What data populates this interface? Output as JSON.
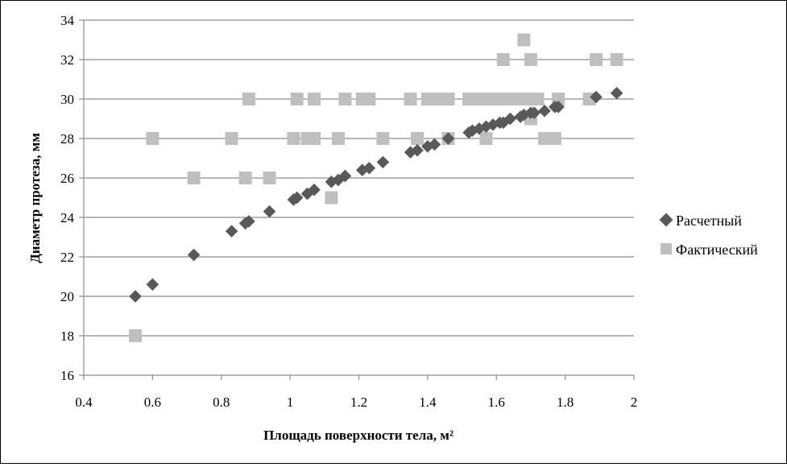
{
  "chart_data": {
    "type": "scatter",
    "xlabel": "Площадь поверхности тела, м²",
    "ylabel": "Диаметр протеза, мм",
    "xlim": [
      0.4,
      2
    ],
    "ylim": [
      16,
      34
    ],
    "x_ticks": [
      "0.4",
      "0.6",
      "0.8",
      "1",
      "1.2",
      "1.4",
      "1.6",
      "1.8",
      "2"
    ],
    "y_ticks": [
      "16",
      "18",
      "20",
      "22",
      "24",
      "26",
      "28",
      "30",
      "32",
      "34"
    ],
    "grid": "horizontal",
    "legend_position": "right",
    "series": [
      {
        "name": "Расчетный",
        "marker": "diamond",
        "color": "#595959",
        "points": [
          [
            0.55,
            20.0
          ],
          [
            0.6,
            20.6
          ],
          [
            0.72,
            22.1
          ],
          [
            0.83,
            23.3
          ],
          [
            0.87,
            23.7
          ],
          [
            0.88,
            23.8
          ],
          [
            0.94,
            24.3
          ],
          [
            1.01,
            24.9
          ],
          [
            1.02,
            25.0
          ],
          [
            1.05,
            25.2
          ],
          [
            1.07,
            25.4
          ],
          [
            1.12,
            25.8
          ],
          [
            1.14,
            25.9
          ],
          [
            1.16,
            26.1
          ],
          [
            1.21,
            26.4
          ],
          [
            1.23,
            26.5
          ],
          [
            1.27,
            26.8
          ],
          [
            1.35,
            27.3
          ],
          [
            1.37,
            27.4
          ],
          [
            1.4,
            27.6
          ],
          [
            1.42,
            27.7
          ],
          [
            1.46,
            28.0
          ],
          [
            1.52,
            28.3
          ],
          [
            1.53,
            28.4
          ],
          [
            1.55,
            28.5
          ],
          [
            1.57,
            28.6
          ],
          [
            1.59,
            28.7
          ],
          [
            1.61,
            28.8
          ],
          [
            1.62,
            28.8
          ],
          [
            1.64,
            29.0
          ],
          [
            1.67,
            29.1
          ],
          [
            1.68,
            29.2
          ],
          [
            1.7,
            29.3
          ],
          [
            1.71,
            29.3
          ],
          [
            1.74,
            29.4
          ],
          [
            1.77,
            29.6
          ],
          [
            1.78,
            29.6
          ],
          [
            1.89,
            30.1
          ],
          [
            1.95,
            30.3
          ]
        ]
      },
      {
        "name": "Фактический",
        "marker": "square",
        "color": "#bfbfbf",
        "points": [
          [
            0.55,
            18
          ],
          [
            0.6,
            28
          ],
          [
            0.72,
            26
          ],
          [
            0.83,
            28
          ],
          [
            0.87,
            26
          ],
          [
            0.88,
            30
          ],
          [
            0.94,
            26
          ],
          [
            1.01,
            28
          ],
          [
            1.02,
            30
          ],
          [
            1.05,
            28
          ],
          [
            1.07,
            28
          ],
          [
            1.07,
            30
          ],
          [
            1.12,
            25
          ],
          [
            1.14,
            28
          ],
          [
            1.16,
            30
          ],
          [
            1.21,
            30
          ],
          [
            1.23,
            30
          ],
          [
            1.27,
            28
          ],
          [
            1.35,
            30
          ],
          [
            1.37,
            28
          ],
          [
            1.4,
            30
          ],
          [
            1.42,
            30
          ],
          [
            1.44,
            30
          ],
          [
            1.46,
            28
          ],
          [
            1.46,
            30
          ],
          [
            1.52,
            30
          ],
          [
            1.55,
            30
          ],
          [
            1.57,
            28
          ],
          [
            1.57,
            30
          ],
          [
            1.59,
            30
          ],
          [
            1.61,
            30
          ],
          [
            1.62,
            32
          ],
          [
            1.63,
            30
          ],
          [
            1.65,
            30
          ],
          [
            1.67,
            30
          ],
          [
            1.68,
            33
          ],
          [
            1.7,
            32
          ],
          [
            1.7,
            29
          ],
          [
            1.7,
            30
          ],
          [
            1.72,
            30
          ],
          [
            1.74,
            28
          ],
          [
            1.77,
            28
          ],
          [
            1.78,
            30
          ],
          [
            1.87,
            30
          ],
          [
            1.89,
            32
          ],
          [
            1.95,
            32
          ]
        ]
      }
    ]
  }
}
